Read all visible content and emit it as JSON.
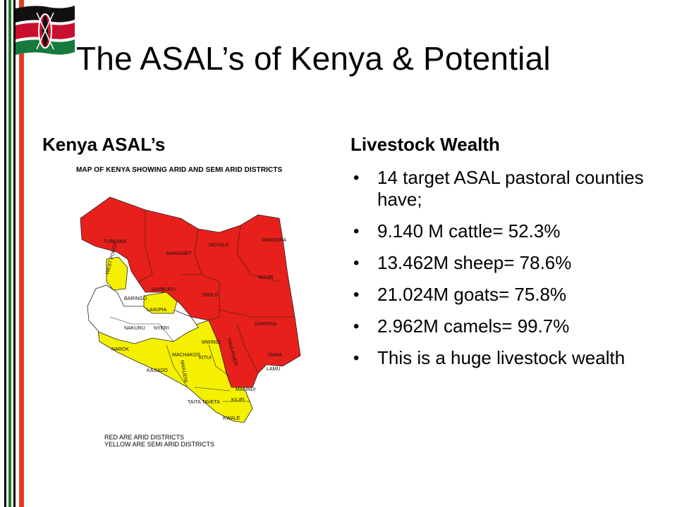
{
  "slide": {
    "title": "The ASAL’s of Kenya & Potential"
  },
  "left_column": {
    "heading": "Kenya ASAL’s",
    "map": {
      "title": "MAP OF KENYA SHOWING ARID AND SEMI ARID DISTRICTS",
      "legend": [
        "RED ARE ARID DISTRICTS",
        "YELLOW ARE SEMI ARID DISTRICTS"
      ],
      "labels": {
        "turkana": "TURKANA",
        "marsabit": "MARSABIT",
        "moyale": "MOYALE",
        "mandera": "MANDERA",
        "wajir": "WAJIR",
        "west_pokot": "WEST POKOT",
        "samburu": "SAMBURU",
        "isiolo": "ISIOLO",
        "baringo": "BARINGO",
        "laikipia": "LAIKIPIA",
        "garissa": "GARISSA",
        "nakuru": "NAKURU",
        "nyeri": "NYERI",
        "mwingi": "MWINGI",
        "narok": "NAROK",
        "machakos": "MACHAKOS",
        "kitui": "KITUI",
        "tana_river": "TANA RIVER",
        "ijara": "IJARA",
        "kajiado": "KAJIADO",
        "makueni": "MAKUENI",
        "lamu": "LAMU",
        "malindi": "MALINDI",
        "taita_taveta": "TAITA TAVETA",
        "kilifi": "KILIFI",
        "kwale": "KWALE"
      },
      "colors": {
        "arid": "#e8201b",
        "semi_arid": "#f5f000",
        "other": "#ffffff",
        "borders": "#222222"
      }
    }
  },
  "right_column": {
    "heading": "Livestock Wealth",
    "bullets": [
      "14 target ASAL pastoral counties have;",
      "9.140 M cattle= 52.3%",
      "13.462M sheep= 78.6%",
      "21.024M goats= 75.8%",
      "2.962M camels= 99.7%",
      "This is a huge  livestock wealth"
    ]
  },
  "theme": {
    "stripe_black": "#000000",
    "stripe_red": "#e83b1e",
    "stripe_green": "#1e7a2e",
    "flag_black": "#111111",
    "flag_red": "#c8102e",
    "flag_green": "#157a3c"
  }
}
